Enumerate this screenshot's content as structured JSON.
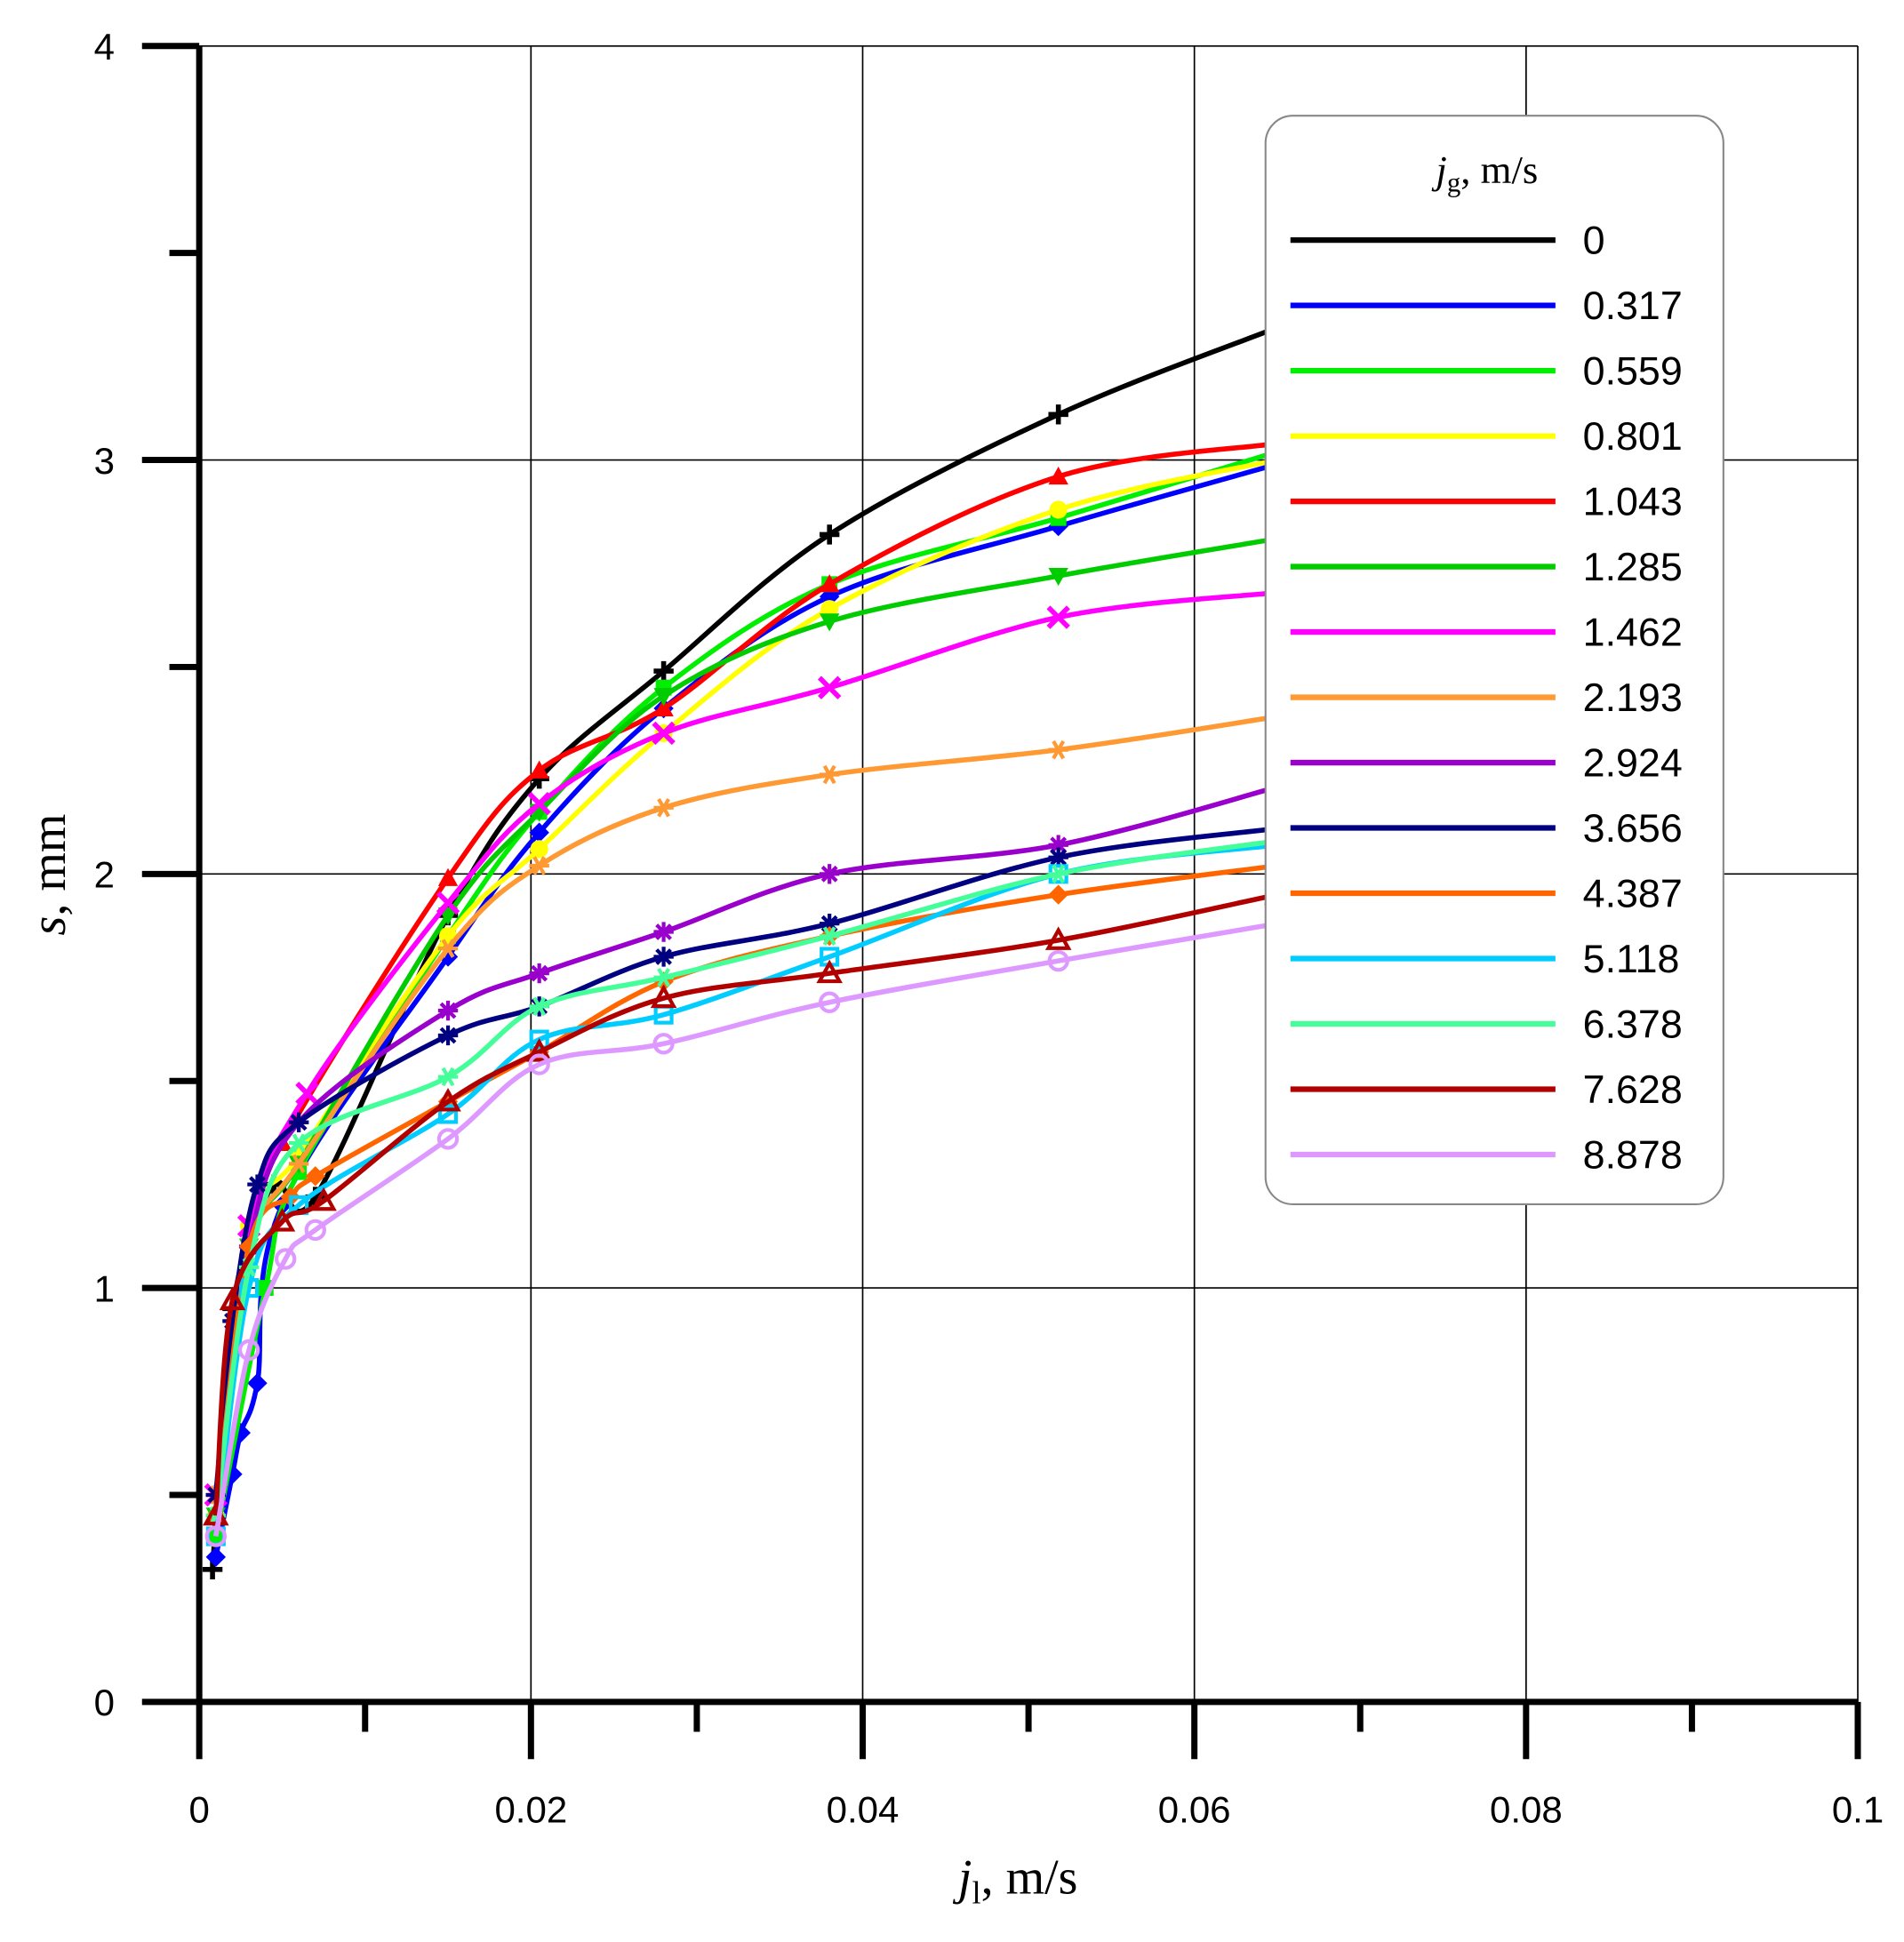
{
  "chart_data": {
    "type": "line",
    "xlabel": {
      "main": "j",
      "sub": "l",
      "unit": ", m/s"
    },
    "ylabel": {
      "main": "s",
      "unit": ", mm"
    },
    "xlim": [
      0,
      0.1
    ],
    "ylim": [
      0,
      4
    ],
    "xticks": [
      "0",
      "0.02",
      "0.04",
      "0.06",
      "0.08",
      "0.1"
    ],
    "yticks": [
      "0",
      "1",
      "2",
      "3",
      "4"
    ],
    "grid": true,
    "legend": {
      "title_main": "j",
      "title_sub": "g",
      "title_unit": ", m/s",
      "placement": "top-right"
    },
    "series": [
      {
        "name": "0",
        "color": "#000000",
        "marker": "+",
        "points": [
          [
            0.0008,
            0.32
          ],
          [
            0.002,
            0.95
          ],
          [
            0.0045,
            1.25
          ],
          [
            0.007,
            1.22
          ],
          [
            0.015,
            1.9
          ],
          [
            0.0205,
            2.23
          ],
          [
            0.028,
            2.49
          ],
          [
            0.038,
            2.82
          ],
          [
            0.0518,
            3.11
          ],
          [
            0.065,
            3.32
          ]
        ]
      },
      {
        "name": "0.317",
        "color": "#0000ff",
        "marker": "◆",
        "points": [
          [
            0.001,
            0.35
          ],
          [
            0.002,
            0.55
          ],
          [
            0.0025,
            0.65
          ],
          [
            0.0035,
            0.77
          ],
          [
            0.005,
            1.2
          ],
          [
            0.015,
            1.8
          ],
          [
            0.0205,
            2.1
          ],
          [
            0.028,
            2.4
          ],
          [
            0.038,
            2.67
          ],
          [
            0.0518,
            2.84
          ],
          [
            0.065,
            2.99
          ]
        ]
      },
      {
        "name": "0.559",
        "color": "#00ee00",
        "marker": "■",
        "points": [
          [
            0.001,
            0.4
          ],
          [
            0.004,
            1.0
          ],
          [
            0.006,
            1.28
          ],
          [
            0.015,
            1.85
          ],
          [
            0.0205,
            2.15
          ],
          [
            0.028,
            2.45
          ],
          [
            0.038,
            2.7
          ],
          [
            0.0518,
            2.86
          ],
          [
            0.065,
            3.02
          ]
        ]
      },
      {
        "name": "0.801",
        "color": "#ffff00",
        "marker": "●",
        "points": [
          [
            0.001,
            0.45
          ],
          [
            0.003,
            1.15
          ],
          [
            0.006,
            1.32
          ],
          [
            0.015,
            1.85
          ],
          [
            0.0205,
            2.06
          ],
          [
            0.028,
            2.34
          ],
          [
            0.038,
            2.64
          ],
          [
            0.0518,
            2.88
          ],
          [
            0.065,
            3.0
          ]
        ]
      },
      {
        "name": "1.043",
        "color": "#ff0000",
        "marker": "▲",
        "points": [
          [
            0.001,
            0.45
          ],
          [
            0.003,
            1.1
          ],
          [
            0.005,
            1.35
          ],
          [
            0.015,
            1.99
          ],
          [
            0.0205,
            2.25
          ],
          [
            0.028,
            2.4
          ],
          [
            0.038,
            2.7
          ],
          [
            0.0518,
            2.96
          ],
          [
            0.065,
            3.04
          ]
        ]
      },
      {
        "name": "1.285",
        "color": "#00cc00",
        "marker": "▼",
        "points": [
          [
            0.001,
            0.45
          ],
          [
            0.003,
            1.1
          ],
          [
            0.006,
            1.3
          ],
          [
            0.015,
            1.9
          ],
          [
            0.0205,
            2.15
          ],
          [
            0.028,
            2.43
          ],
          [
            0.038,
            2.61
          ],
          [
            0.0518,
            2.72
          ],
          [
            0.065,
            2.81
          ]
        ]
      },
      {
        "name": "1.462",
        "color": "#ff00ff",
        "marker": "×",
        "points": [
          [
            0.001,
            0.5
          ],
          [
            0.003,
            1.15
          ],
          [
            0.0065,
            1.47
          ],
          [
            0.015,
            1.93
          ],
          [
            0.0205,
            2.17
          ],
          [
            0.028,
            2.34
          ],
          [
            0.038,
            2.45
          ],
          [
            0.0518,
            2.62
          ],
          [
            0.065,
            2.68
          ]
        ]
      },
      {
        "name": "2.193",
        "color": "#ff9933",
        "marker": "✶",
        "points": [
          [
            0.001,
            0.5
          ],
          [
            0.003,
            1.1
          ],
          [
            0.006,
            1.3
          ],
          [
            0.015,
            1.82
          ],
          [
            0.0205,
            2.02
          ],
          [
            0.028,
            2.16
          ],
          [
            0.038,
            2.24
          ],
          [
            0.0518,
            2.3
          ],
          [
            0.065,
            2.38
          ]
        ]
      },
      {
        "name": "2.924",
        "color": "#9900cc",
        "marker": "✱",
        "points": [
          [
            0.001,
            0.5
          ],
          [
            0.003,
            1.1
          ],
          [
            0.006,
            1.4
          ],
          [
            0.015,
            1.67
          ],
          [
            0.0205,
            1.76
          ],
          [
            0.028,
            1.86
          ],
          [
            0.038,
            2.0
          ],
          [
            0.0518,
            2.07
          ],
          [
            0.065,
            2.21
          ]
        ]
      },
      {
        "name": "3.656",
        "color": "#000080",
        "marker": "✳",
        "points": [
          [
            0.001,
            0.5
          ],
          [
            0.002,
            0.92
          ],
          [
            0.0035,
            1.25
          ],
          [
            0.006,
            1.4
          ],
          [
            0.015,
            1.61
          ],
          [
            0.0205,
            1.68
          ],
          [
            0.028,
            1.8
          ],
          [
            0.038,
            1.88
          ],
          [
            0.0518,
            2.04
          ],
          [
            0.065,
            2.11
          ]
        ]
      },
      {
        "name": "4.387",
        "color": "#ff6600",
        "marker": "◆",
        "points": [
          [
            0.001,
            0.45
          ],
          [
            0.003,
            1.1
          ],
          [
            0.0055,
            1.22
          ],
          [
            0.007,
            1.27
          ],
          [
            0.015,
            1.45
          ],
          [
            0.0205,
            1.57
          ],
          [
            0.028,
            1.74
          ],
          [
            0.038,
            1.85
          ],
          [
            0.0518,
            1.95
          ],
          [
            0.065,
            2.02
          ]
        ]
      },
      {
        "name": "5.118",
        "color": "#00ccff",
        "marker": "□",
        "points": [
          [
            0.001,
            0.4
          ],
          [
            0.003,
            1.0
          ],
          [
            0.006,
            1.2
          ],
          [
            0.015,
            1.42
          ],
          [
            0.0205,
            1.6
          ],
          [
            0.028,
            1.66
          ],
          [
            0.038,
            1.8
          ],
          [
            0.0518,
            2.0
          ],
          [
            0.065,
            2.07
          ]
        ]
      },
      {
        "name": "6.378",
        "color": "#44ff99",
        "marker": "✶",
        "points": [
          [
            0.001,
            0.45
          ],
          [
            0.003,
            1.05
          ],
          [
            0.006,
            1.35
          ],
          [
            0.015,
            1.51
          ],
          [
            0.0205,
            1.68
          ],
          [
            0.028,
            1.75
          ],
          [
            0.038,
            1.85
          ],
          [
            0.0518,
            2.0
          ],
          [
            0.065,
            2.08
          ]
        ]
      },
      {
        "name": "7.628",
        "color": "#b00000",
        "marker": "△",
        "points": [
          [
            0.001,
            0.45
          ],
          [
            0.002,
            0.97
          ],
          [
            0.005,
            1.16
          ],
          [
            0.0075,
            1.21
          ],
          [
            0.015,
            1.45
          ],
          [
            0.0205,
            1.57
          ],
          [
            0.028,
            1.7
          ],
          [
            0.038,
            1.76
          ],
          [
            0.0518,
            1.84
          ],
          [
            0.065,
            1.95
          ]
        ]
      },
      {
        "name": "8.878",
        "color": "#dd99ff",
        "marker": "○",
        "points": [
          [
            0.001,
            0.4
          ],
          [
            0.003,
            0.85
          ],
          [
            0.0052,
            1.07
          ],
          [
            0.007,
            1.14
          ],
          [
            0.015,
            1.36
          ],
          [
            0.0205,
            1.54
          ],
          [
            0.028,
            1.59
          ],
          [
            0.038,
            1.69
          ],
          [
            0.0518,
            1.79
          ],
          [
            0.065,
            1.88
          ]
        ]
      }
    ]
  }
}
